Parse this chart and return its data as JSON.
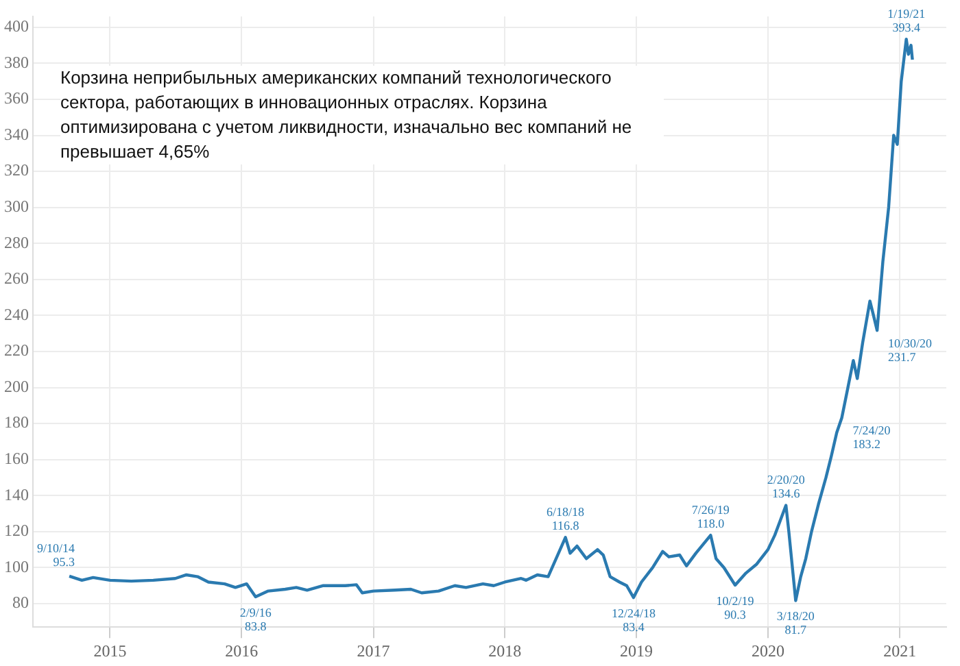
{
  "chart_data": {
    "type": "line",
    "title": "Корзина неприбыльных американских компаний технологического сектора, работающих в инновационных отраслях. Корзина оптимизирована с учетом ликвидности, изначально вес компаний не превышает 4,65%",
    "x": [
      "2014-09-10",
      "2014-10-15",
      "2014-11-15",
      "2015-01-01",
      "2015-03-01",
      "2015-05-01",
      "2015-07-01",
      "2015-08-01",
      "2015-09-01",
      "2015-10-01",
      "2015-11-15",
      "2015-12-15",
      "2016-01-15",
      "2016-02-09",
      "2016-03-15",
      "2016-05-01",
      "2016-06-01",
      "2016-07-01",
      "2016-08-15",
      "2016-10-15",
      "2016-11-15",
      "2016-12-01",
      "2017-01-01",
      "2017-03-01",
      "2017-04-15",
      "2017-05-15",
      "2017-07-01",
      "2017-08-15",
      "2017-09-15",
      "2017-11-01",
      "2017-12-01",
      "2018-01-01",
      "2018-02-15",
      "2018-03-01",
      "2018-04-01",
      "2018-05-01",
      "2018-06-18",
      "2018-07-01",
      "2018-07-20",
      "2018-08-15",
      "2018-09-15",
      "2018-10-01",
      "2018-10-20",
      "2018-11-15",
      "2018-12-05",
      "2018-12-24",
      "2019-01-15",
      "2019-02-15",
      "2019-03-15",
      "2019-04-01",
      "2019-05-01",
      "2019-05-20",
      "2019-06-15",
      "2019-07-26",
      "2019-08-10",
      "2019-09-01",
      "2019-10-02",
      "2019-11-01",
      "2019-12-01",
      "2020-01-01",
      "2020-01-20",
      "2020-02-20",
      "2020-02-28",
      "2020-03-18",
      "2020-04-01",
      "2020-04-15",
      "2020-05-01",
      "2020-05-20",
      "2020-06-10",
      "2020-06-25",
      "2020-07-10",
      "2020-07-24",
      "2020-08-10",
      "2020-08-25",
      "2020-09-05",
      "2020-09-20",
      "2020-10-10",
      "2020-10-20",
      "2020-10-30",
      "2020-11-15",
      "2020-12-01",
      "2020-12-15",
      "2020-12-25",
      "2021-01-05",
      "2021-01-19",
      "2021-01-25",
      "2021-02-01",
      "2021-02-05"
    ],
    "series": [
      {
        "color": "#2a7ab0",
        "values": [
          95.3,
          93,
          94.5,
          93,
          92.5,
          93,
          94,
          96,
          95,
          92,
          91,
          89,
          91,
          83.8,
          87,
          88,
          89,
          87.5,
          90,
          90,
          90.5,
          86,
          87,
          87.5,
          88,
          86,
          87,
          90,
          89,
          91,
          90,
          92,
          94,
          93,
          96,
          95,
          116.8,
          108,
          112,
          105,
          110,
          107,
          95,
          92,
          90,
          83.4,
          92,
          100,
          109,
          106,
          107,
          101,
          108,
          118.0,
          105,
          100,
          90.3,
          97,
          102,
          110,
          118,
          134.6,
          120,
          81.7,
          95,
          105,
          120,
          135,
          150,
          162,
          175,
          183.2,
          200,
          215,
          205,
          225,
          248,
          240,
          231.7,
          270,
          300,
          340,
          335,
          370,
          393.4,
          385,
          390,
          382
        ]
      }
    ],
    "xlim": [
      "2014-06-01",
      "2021-05-10"
    ],
    "xticks": [
      {
        "value": "2015-01-01",
        "label": "2015"
      },
      {
        "value": "2016-01-01",
        "label": "2016"
      },
      {
        "value": "2017-01-01",
        "label": "2017"
      },
      {
        "value": "2018-01-01",
        "label": "2018"
      },
      {
        "value": "2019-01-01",
        "label": "2019"
      },
      {
        "value": "2020-01-01",
        "label": "2020"
      },
      {
        "value": "2021-01-01",
        "label": "2021"
      }
    ],
    "ylim": [
      67,
      406
    ],
    "yticks": [
      80,
      100,
      120,
      140,
      160,
      180,
      200,
      220,
      240,
      260,
      280,
      300,
      320,
      340,
      360,
      380,
      400
    ],
    "grid": true,
    "marker": "none",
    "line_style": "solid",
    "legend": false,
    "annotations": [
      {
        "text": "9/10/14\n95.3",
        "x": "2014-09-10",
        "y": 95.3
      },
      {
        "text": "2/9/16\n83.8",
        "x": "2016-02-09",
        "y": 83.8
      },
      {
        "text": "6/18/18\n116.8",
        "x": "2018-06-18",
        "y": 116.8
      },
      {
        "text": "12/24/18\n83.4",
        "x": "2018-12-24",
        "y": 83.4
      },
      {
        "text": "7/26/19\n118.0",
        "x": "2019-07-26",
        "y": 118.0
      },
      {
        "text": "10/2/19\n90.3",
        "x": "2019-10-02",
        "y": 90.3
      },
      {
        "text": "2/20/20\n134.6",
        "x": "2020-02-20",
        "y": 134.6
      },
      {
        "text": "3/18/20\n81.7",
        "x": "2020-03-18",
        "y": 81.7
      },
      {
        "text": "7/24/20\n183.2",
        "x": "2020-07-24",
        "y": 183.2
      },
      {
        "text": "10/30/20\n231.7",
        "x": "2020-10-30",
        "y": 231.7
      },
      {
        "text": "1/19/21\n393.4",
        "x": "2021-01-19",
        "y": 393.4
      }
    ]
  }
}
